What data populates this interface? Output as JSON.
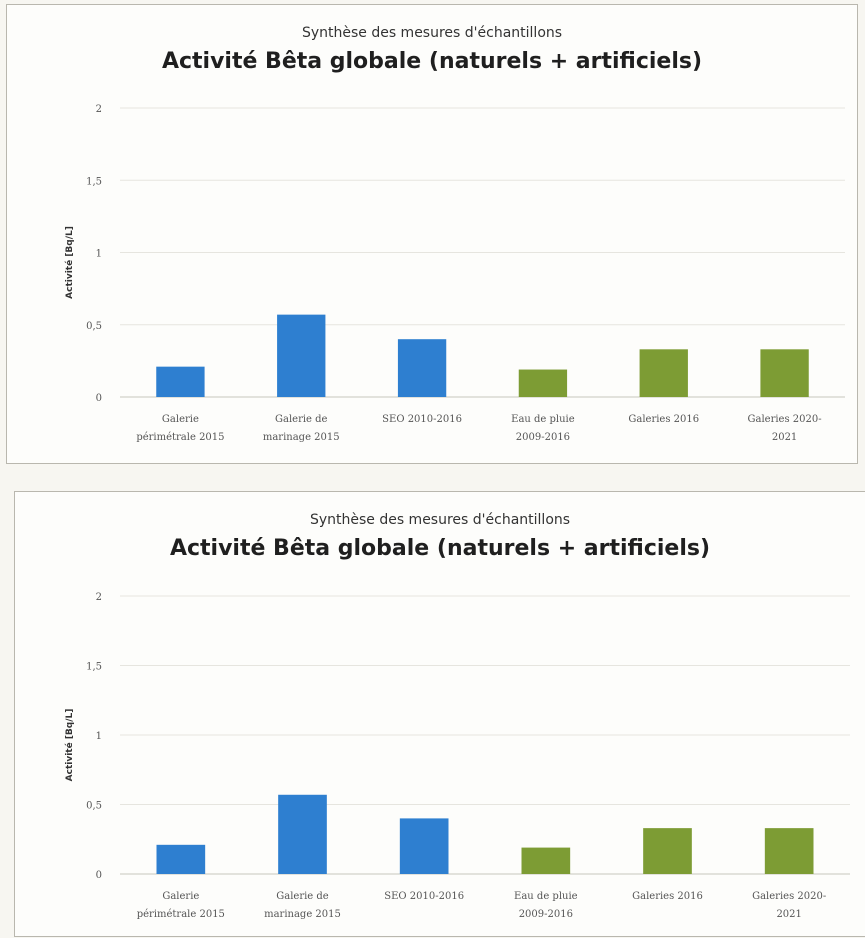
{
  "chart_data": [
    {
      "type": "bar",
      "subtitle": "Synthèse des mesures d'échantillons",
      "title": "Activité Bêta globale (naturels + artificiels)",
      "ylabel": "Activité [Bq/L]",
      "xlabel": "",
      "ylim": [
        0,
        2
      ],
      "yticks": [
        "0",
        "0,5",
        "1",
        "1,5",
        "2"
      ],
      "grid": true,
      "categories": [
        [
          "Galerie",
          "périmétrale 2015"
        ],
        [
          "Galerie de",
          "marinage 2015"
        ],
        [
          "SEO 2010-2016"
        ],
        [
          "Eau de pluie",
          "2009-2016"
        ],
        [
          "Galeries 2016"
        ],
        [
          "Galeries 2020-",
          "2021"
        ]
      ],
      "values": [
        0.21,
        0.57,
        0.4,
        0.19,
        0.33,
        0.33
      ],
      "colors": [
        "#2e7fd0",
        "#2e7fd0",
        "#2e7fd0",
        "#7d9c34",
        "#7d9c34",
        "#7d9c34"
      ]
    },
    {
      "type": "bar",
      "subtitle": "Synthèse des mesures d'échantillons",
      "title": "Activité Bêta globale (naturels + artificiels)",
      "ylabel": "Activité [Bq/L]",
      "xlabel": "",
      "ylim": [
        0,
        2
      ],
      "yticks": [
        "0",
        "0,5",
        "1",
        "1,5",
        "2"
      ],
      "grid": true,
      "categories": [
        [
          "Galerie",
          "périmétrale 2015"
        ],
        [
          "Galerie de",
          "marinage 2015"
        ],
        [
          "SEO 2010-2016"
        ],
        [
          "Eau de pluie",
          "2009-2016"
        ],
        [
          "Galeries 2016"
        ],
        [
          "Galeries 2020-",
          "2021"
        ]
      ],
      "values": [
        0.21,
        0.57,
        0.4,
        0.19,
        0.33,
        0.33
      ],
      "colors": [
        "#2e7fd0",
        "#2e7fd0",
        "#2e7fd0",
        "#7d9c34",
        "#7d9c34",
        "#7d9c34"
      ]
    }
  ]
}
